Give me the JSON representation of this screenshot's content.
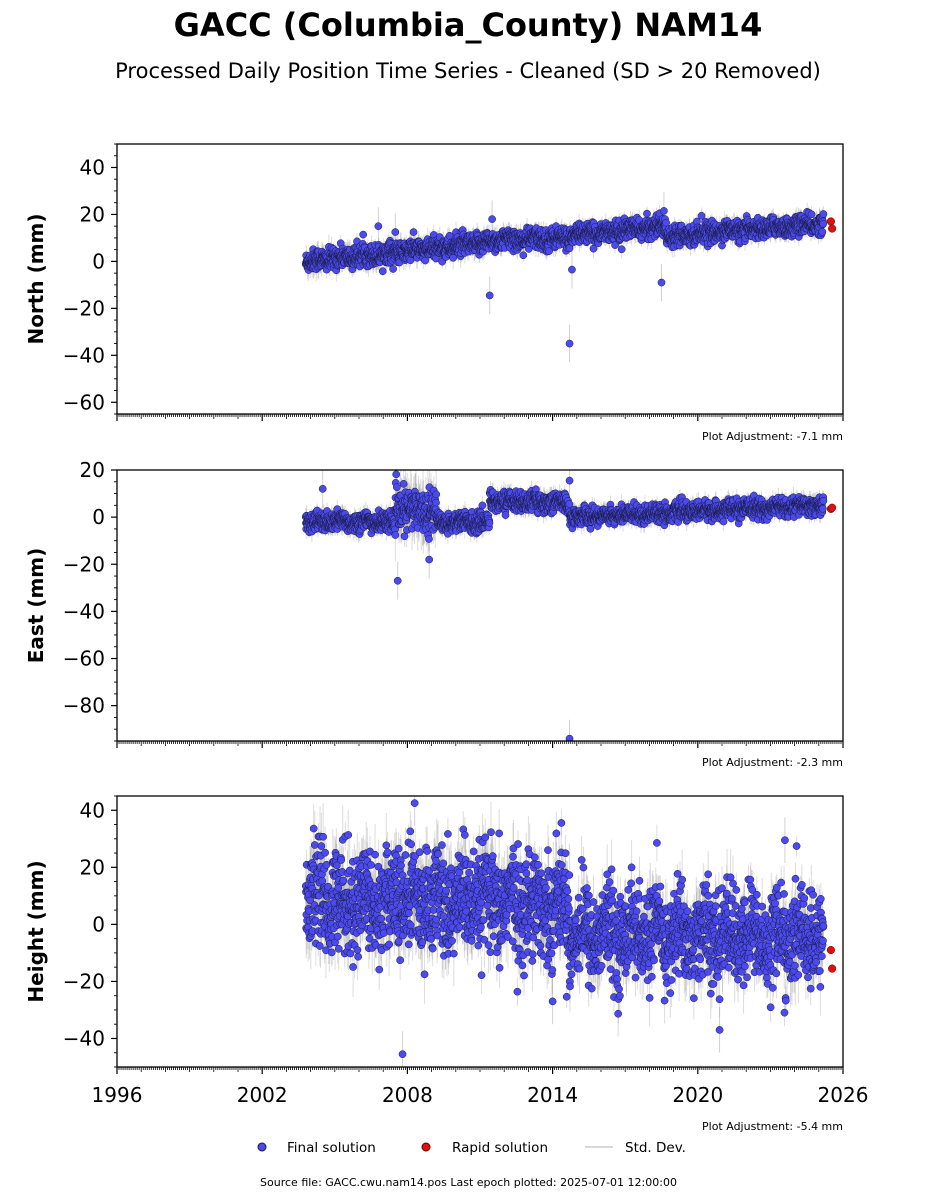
{
  "title": "GACC (Columbia_County) NAM14",
  "subtitle": "Processed Daily Position Time Series - Cleaned (SD > 20 Removed)",
  "colors": {
    "final": "#4a4aef",
    "final_edge": "#1a1a40",
    "rapid": "#e01010",
    "std_dev": "#b0b0b0"
  },
  "legend": {
    "final_label": "Final solution",
    "rapid_label": "Rapid solution",
    "std_label": "Std. Dev."
  },
  "footer": "Source file: GACC.cwu.nam14.pos  Last epoch plotted: 2025-07-01 12:00:00",
  "chart_data": [
    {
      "type": "scatter",
      "ylabel": "North (mm)",
      "ylim": [
        -65,
        50
      ],
      "yticks": [
        40,
        20,
        0,
        -20,
        -40,
        -60
      ],
      "xlim": [
        1996,
        2026
      ],
      "xticks": [
        1996,
        2002,
        2008,
        2014,
        2020,
        2026
      ],
      "show_xtick_labels": false,
      "adjustment": "Plot Adjustment: -7.1 mm",
      "segments": [
        {
          "start": 2003.8,
          "end": 2011.4,
          "y0": 0,
          "y1": 8,
          "noise": 2.2,
          "sd": 3.5
        },
        {
          "start": 2011.4,
          "end": 2014.7,
          "y0": 9,
          "y1": 10,
          "noise": 2.2,
          "sd": 3
        },
        {
          "start": 2014.7,
          "end": 2018.7,
          "y0": 11,
          "y1": 15,
          "noise": 2.0,
          "sd": 3
        },
        {
          "start": 2018.7,
          "end": 2025.2,
          "y0": 11,
          "y1": 16,
          "noise": 2.0,
          "sd": 3
        }
      ],
      "outliers": [
        {
          "x": 2011.4,
          "y": -14.5
        },
        {
          "x": 2014.7,
          "y": -35
        },
        {
          "x": 2014.8,
          "y": -3.5
        },
        {
          "x": 2018.5,
          "y": -9
        },
        {
          "x": 2011.5,
          "y": 18
        },
        {
          "x": 2018.6,
          "y": 21.5
        },
        {
          "x": 2007.5,
          "y": 12.5
        },
        {
          "x": 2006.8,
          "y": 15
        }
      ],
      "rapid": [
        {
          "x": 2025.5,
          "y": 17
        },
        {
          "x": 2025.55,
          "y": 14
        }
      ]
    },
    {
      "type": "scatter",
      "ylabel": "East (mm)",
      "ylim": [
        -95,
        20
      ],
      "yticks": [
        20,
        0,
        -20,
        -40,
        -60,
        -80
      ],
      "xlim": [
        1996,
        2026
      ],
      "xticks": [
        1996,
        2002,
        2008,
        2014,
        2020,
        2026
      ],
      "show_xtick_labels": false,
      "adjustment": "Plot Adjustment: -2.3 mm",
      "segments": [
        {
          "start": 2003.8,
          "end": 2007.5,
          "y0": -2,
          "y1": -2,
          "noise": 2.0,
          "sd": 3
        },
        {
          "start": 2007.5,
          "end": 2009.2,
          "y0": 3,
          "y1": 3,
          "noise": 4.0,
          "sd": 8
        },
        {
          "start": 2009.2,
          "end": 2011.4,
          "y0": -2,
          "y1": -2,
          "noise": 2.0,
          "sd": 3
        },
        {
          "start": 2011.4,
          "end": 2014.7,
          "y0": 7,
          "y1": 6,
          "noise": 2.0,
          "sd": 3
        },
        {
          "start": 2014.7,
          "end": 2025.2,
          "y0": 0,
          "y1": 5,
          "noise": 1.8,
          "sd": 3
        }
      ],
      "outliers": [
        {
          "x": 2007.6,
          "y": -27
        },
        {
          "x": 2008.9,
          "y": -18
        },
        {
          "x": 2014.7,
          "y": -94
        },
        {
          "x": 2014.7,
          "y": 15.5
        },
        {
          "x": 2004.5,
          "y": 12
        }
      ],
      "rapid": [
        {
          "x": 2025.5,
          "y": 3.5
        },
        {
          "x": 2025.55,
          "y": 4
        }
      ]
    },
    {
      "type": "scatter",
      "ylabel": "Height (mm)",
      "ylim": [
        -50,
        45
      ],
      "yticks": [
        40,
        20,
        0,
        -20,
        -40
      ],
      "xlim": [
        1996,
        2026
      ],
      "xticks": [
        1996,
        2002,
        2008,
        2014,
        2020,
        2026
      ],
      "xtick_labels": [
        "1996",
        "2002",
        "2008",
        "2014",
        "2020",
        "2026"
      ],
      "show_xtick_labels": true,
      "adjustment": "Plot Adjustment: -5.4 mm",
      "segments": [
        {
          "start": 2003.8,
          "end": 2014.7,
          "y0": 9,
          "y1": 7,
          "noise": 9.0,
          "sd": 8
        },
        {
          "start": 2014.7,
          "end": 2025.2,
          "y0": -3,
          "y1": -5,
          "noise": 8.0,
          "sd": 7
        }
      ],
      "outliers": [
        {
          "x": 2007.8,
          "y": -45.5
        },
        {
          "x": 2008.3,
          "y": 42.5
        },
        {
          "x": 2020.9,
          "y": -37
        },
        {
          "x": 2023.6,
          "y": 29.5
        },
        {
          "x": 2014.0,
          "y": -27
        }
      ],
      "rapid": [
        {
          "x": 2025.5,
          "y": -9
        },
        {
          "x": 2025.55,
          "y": -15.5
        }
      ]
    }
  ]
}
